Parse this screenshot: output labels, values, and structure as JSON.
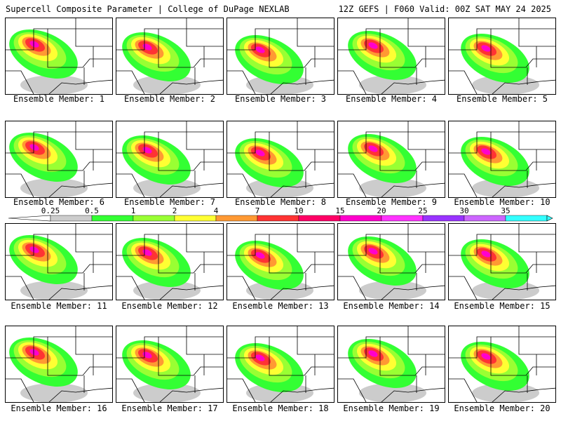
{
  "header": {
    "left": "Supercell Composite Parameter | College of DuPage NEXLAB",
    "right": "12Z GEFS | F060 Valid: 00Z SAT MAY 24 2025"
  },
  "panel_label_prefix": "Ensemble Member: ",
  "members": [
    1,
    2,
    3,
    4,
    5,
    6,
    7,
    8,
    9,
    10,
    11,
    12,
    13,
    14,
    15,
    16,
    17,
    18,
    19,
    20
  ],
  "colorbar": {
    "labels": [
      "0.25",
      "0.5",
      "1",
      "2",
      "4",
      "7",
      "10",
      "15",
      "20",
      "25",
      "30",
      "35"
    ],
    "colors": [
      "#cccccc",
      "#33ff33",
      "#99ff33",
      "#ffff33",
      "#ff9933",
      "#ff3333",
      "#ff0066",
      "#ff00cc",
      "#ff33ff",
      "#9933ff",
      "#cc66ff",
      "#33ffff"
    ]
  },
  "layer_colors": {
    "light": "#cccccc",
    "low": "#33ff33",
    "mid": "#99ff33",
    "yellow": "#ffff33",
    "orange": "#ff9933",
    "red": "#ff3333",
    "core": "#ff00cc"
  }
}
